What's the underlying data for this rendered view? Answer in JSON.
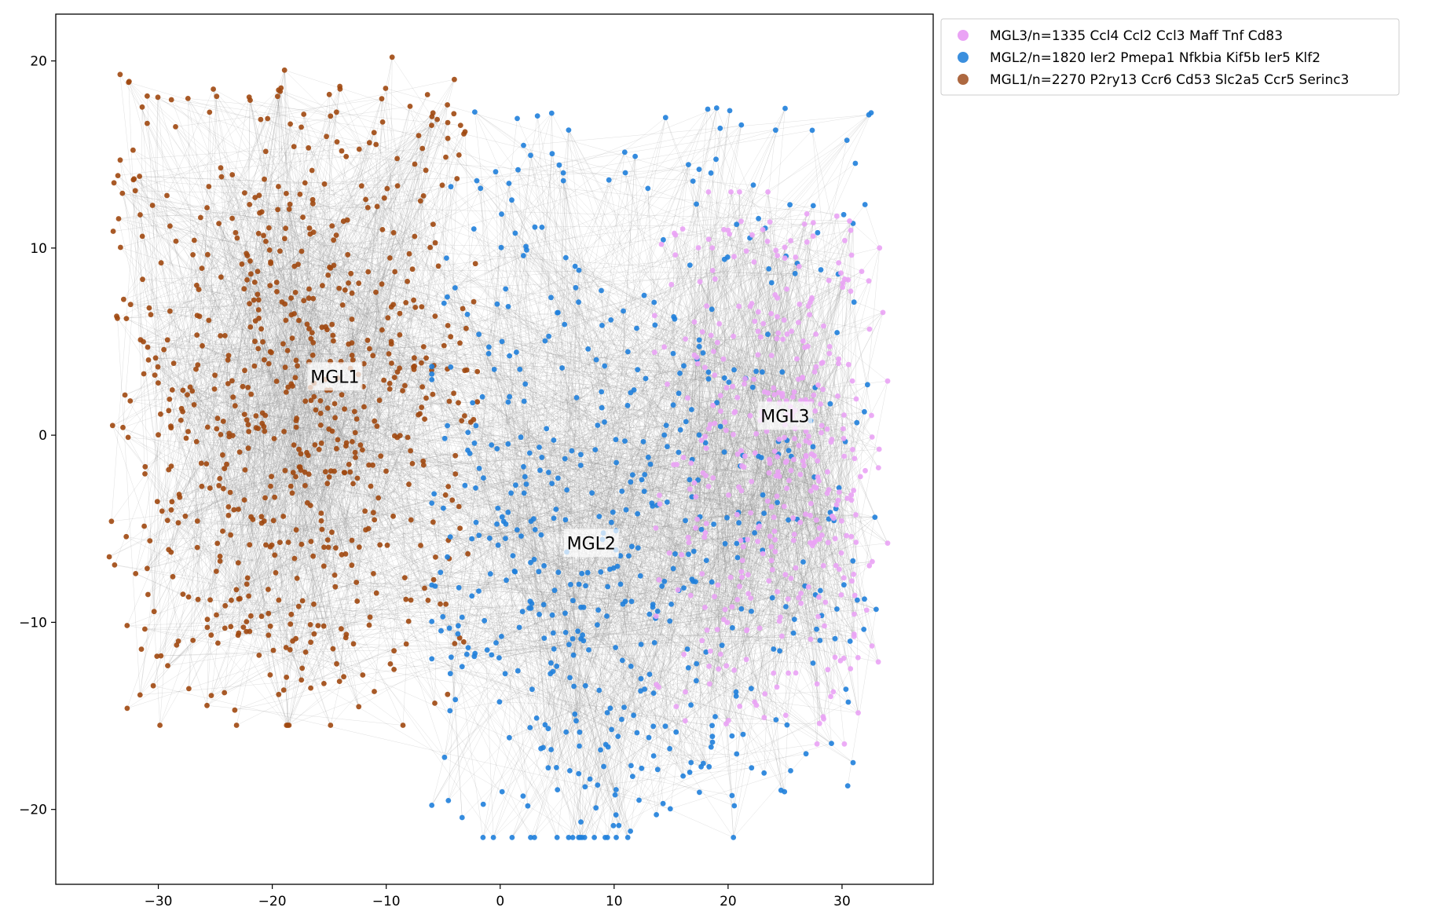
{
  "chart_data": {
    "type": "scatter",
    "title": "",
    "xlabel": "",
    "ylabel": "",
    "xlim": [
      -39,
      38
    ],
    "ylim": [
      -24,
      22.5
    ],
    "xticks": [
      -30,
      -20,
      -10,
      0,
      10,
      20,
      30
    ],
    "xtick_labels": [
      "−30",
      "−20",
      "−10",
      "0",
      "10",
      "20",
      "30"
    ],
    "yticks": [
      20,
      10,
      0,
      -10,
      -20
    ],
    "ytick_labels": [
      "20",
      "10",
      "0",
      "−10",
      "−20"
    ],
    "grid": false,
    "legend_position": "outside top-right",
    "edge_color": "#8c8c8c",
    "series": [
      {
        "name": "MGL3/n=1335 Ccl4 Ccl2 Ccl3 Maff Tnf Cd83",
        "label": "MGL3",
        "count": 1335,
        "color": "#eaa3f5",
        "center": [
          25,
          0.5
        ],
        "label_pos": [
          25,
          1
        ],
        "extent_x": [
          13,
          34
        ],
        "extent_y": [
          -16.5,
          13
        ]
      },
      {
        "name": "MGL2/n=1820 Ier2 Pmepa1 Nfkbia Kif5b Ier5 Klf2",
        "label": "MGL2",
        "count": 1820,
        "color": "#1f7fdb",
        "center": [
          8,
          -7
        ],
        "label_pos": [
          8,
          -5.8
        ],
        "extent_x": [
          -6,
          34
        ],
        "extent_y": [
          -21.5,
          18.5
        ]
      },
      {
        "name": "MGL1/n=2270 P2ry13 Ccr6 Cd53 Slc2a5 Ccr5 Serinc3",
        "label": "MGL1",
        "count": 2270,
        "color": "#a0480f",
        "center": [
          -18,
          2
        ],
        "label_pos": [
          -14.5,
          3.1
        ],
        "extent_x": [
          -35,
          -2
        ],
        "extent_y": [
          -15.5,
          20.2
        ]
      }
    ]
  },
  "legend": {
    "entries": [
      "MGL3/n=1335 Ccl4 Ccl2 Ccl3 Maff Tnf Cd83",
      "MGL2/n=1820 Ier2 Pmepa1 Nfkbia Kif5b Ier5 Klf2",
      "MGL1/n=2270 P2ry13 Ccr6 Cd53 Slc2a5 Ccr5 Serinc3"
    ]
  }
}
